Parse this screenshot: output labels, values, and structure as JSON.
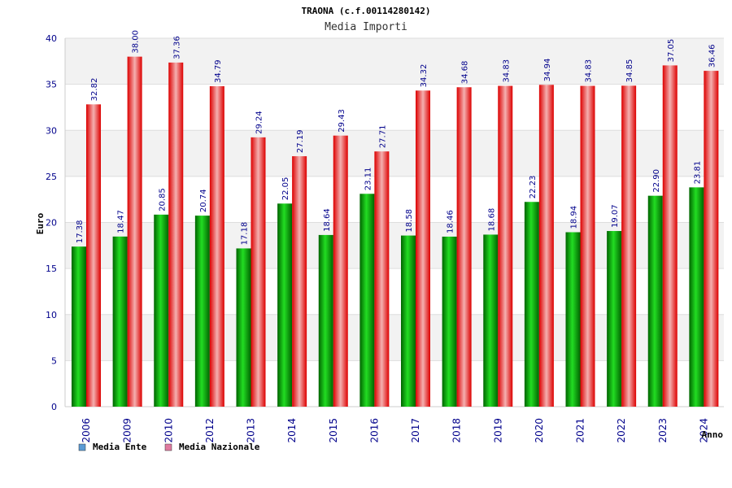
{
  "chart_data": {
    "type": "bar",
    "title": "TRAONA (c.f.00114280142)",
    "subtitle": "Media Importi",
    "ylabel": "Euro",
    "xlabel": "Anno",
    "ylim": [
      0,
      40
    ],
    "yticks": [
      0,
      5,
      10,
      15,
      20,
      25,
      30,
      35,
      40
    ],
    "grid": true,
    "legend_position": "bottom-left",
    "categories": [
      "2006",
      "2009",
      "2010",
      "2012",
      "2013",
      "2014",
      "2015",
      "2016",
      "2017",
      "2018",
      "2019",
      "2020",
      "2021",
      "2022",
      "2023",
      "2024"
    ],
    "series": [
      {
        "name": "Media Ente",
        "values": [
          17.38,
          18.47,
          20.85,
          20.74,
          17.18,
          22.05,
          18.64,
          23.11,
          18.58,
          18.46,
          18.68,
          22.23,
          18.94,
          19.07,
          22.9,
          23.81
        ],
        "labels": [
          "17.38",
          "18.47",
          "20.85",
          "20.74",
          "17.18",
          "22.05",
          "18.64",
          "23.11",
          "18.58",
          "18.46",
          "18.68",
          "22.23",
          "18.94",
          "19.07",
          "22.90",
          "23.81"
        ]
      },
      {
        "name": "Media Nazionale",
        "values": [
          32.82,
          38.0,
          37.36,
          34.79,
          29.24,
          27.19,
          29.43,
          27.71,
          34.32,
          34.68,
          34.83,
          34.94,
          34.83,
          34.85,
          37.05,
          36.46
        ],
        "labels": [
          "32.82",
          "38.00",
          "37.36",
          "34.79",
          "29.24",
          "27.19",
          "29.43",
          "27.71",
          "34.32",
          "34.68",
          "34.83",
          "34.94",
          "34.83",
          "34.85",
          "37.05",
          "36.46"
        ]
      }
    ]
  },
  "legend": {
    "items": [
      {
        "label": "Media Ente",
        "color": "#5b9bd5"
      },
      {
        "label": "Media Nazionale",
        "color": "#e07aa0"
      }
    ]
  },
  "colors": {
    "ente": "#00aa00",
    "nazionale": "#ee1111"
  }
}
